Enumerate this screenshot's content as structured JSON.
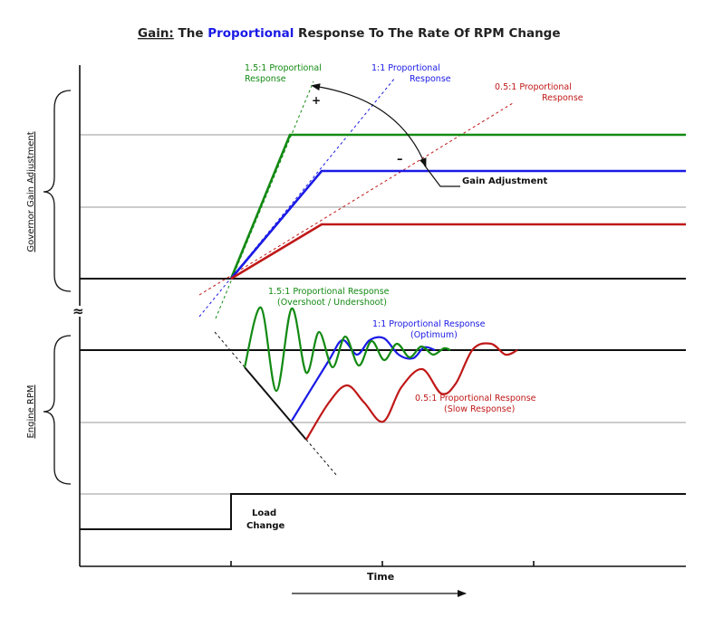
{
  "title": {
    "part1": "Gain:",
    "part2": " The ",
    "part3": "Proportional",
    "part4": " Response To The Rate Of RPM Change"
  },
  "colors": {
    "green": "#138a13",
    "blue": "#1a1ae6",
    "red": "#c01818",
    "black": "#111111",
    "grid": "#9a9a9a"
  },
  "top_labels": {
    "green_l1": "1.5:1 Proportional",
    "green_l2": "Response",
    "blue_l1": "1:1 Proportional",
    "blue_l2": "Response",
    "red_l1": "0.5:1 Proportional",
    "red_l2": "Response",
    "plus": "+",
    "minus": "–",
    "gain_adjustment": "Gain Adjustment"
  },
  "bottom_labels": {
    "green_l1": "1.5:1 Proportional Response",
    "green_l2": "(Overshoot  / Undershoot)",
    "blue_l1": "1:1 Proportional Response",
    "blue_l2": "(Optimum)",
    "red_l1": "0.5:1 Proportional Response",
    "red_l2": "(Slow Response)",
    "load_l1": "Load",
    "load_l2": "Change"
  },
  "axes": {
    "side_top": "Governor Gain Adjustment",
    "side_bottom": "Engine RPM",
    "break_symbol": "≈",
    "x_label": "Time"
  }
}
